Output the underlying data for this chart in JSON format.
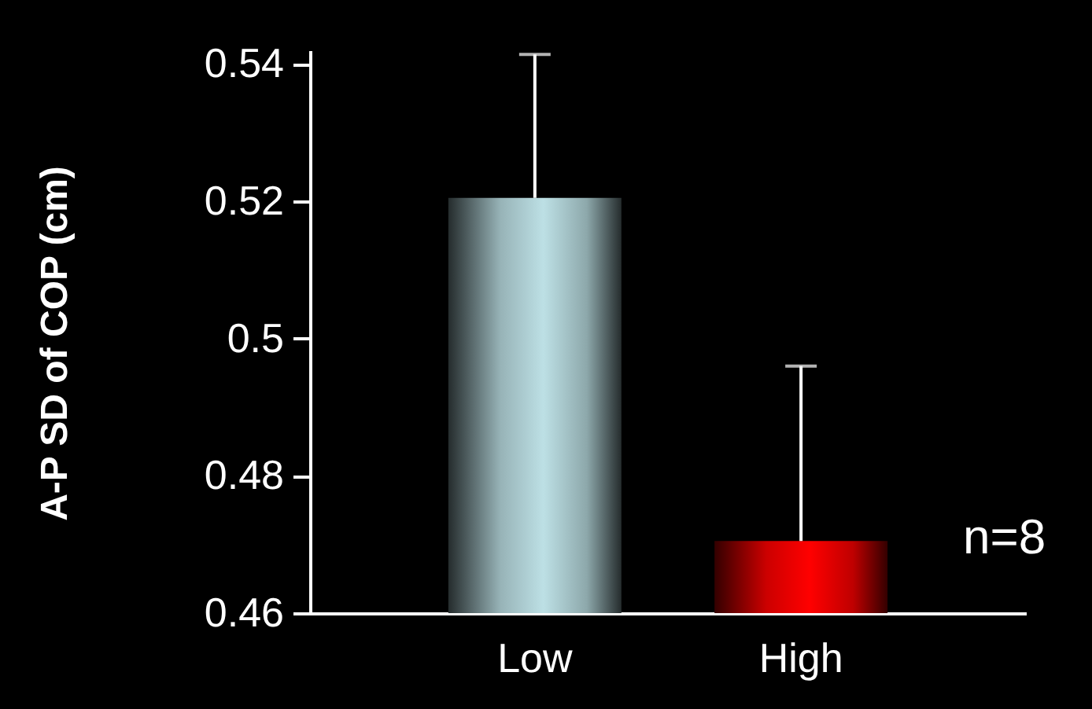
{
  "chart_data": {
    "type": "bar",
    "ylabel": "A-P SD of COP (cm)",
    "categories": [
      "Low",
      "High"
    ],
    "values": [
      0.5205,
      0.4705
    ],
    "colors": [
      "#bde0e5",
      "#ff0000"
    ],
    "errors": [
      [
        0.5205,
        0.5414
      ],
      [
        0.4705,
        0.496
      ]
    ],
    "ylim": [
      0.46,
      0.542
    ],
    "yticks": [
      0.46,
      0.48,
      0.5,
      0.52,
      0.54
    ],
    "grid": false,
    "annotations": [
      "n=8"
    ]
  }
}
